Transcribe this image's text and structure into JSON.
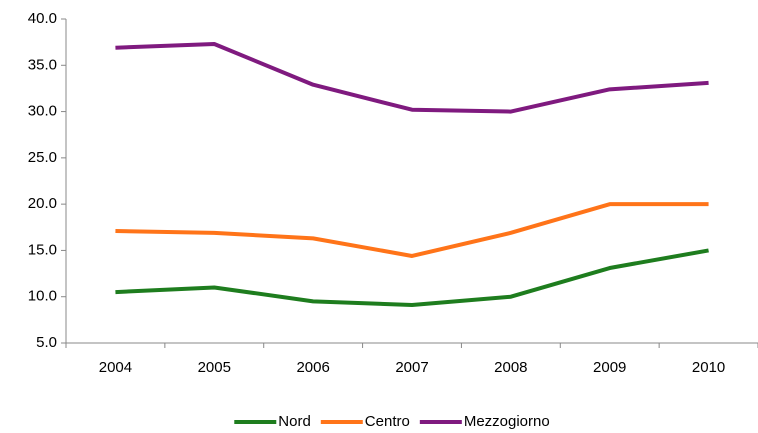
{
  "chart_data": {
    "type": "line",
    "categories": [
      "2004",
      "2005",
      "2006",
      "2007",
      "2008",
      "2009",
      "2010"
    ],
    "series": [
      {
        "name": "Nord",
        "color": "#1e7d1e",
        "values": [
          10.5,
          11.0,
          9.5,
          9.1,
          10.0,
          13.1,
          15.0
        ]
      },
      {
        "name": "Centro",
        "color": "#ff7419",
        "values": [
          17.1,
          16.9,
          16.3,
          14.4,
          16.9,
          20.0,
          20.0
        ]
      },
      {
        "name": "Mezzogiorno",
        "color": "#7f1a7f",
        "values": [
          36.9,
          37.3,
          32.9,
          30.2,
          30.0,
          32.4,
          33.1
        ]
      }
    ],
    "ylim": [
      5,
      40
    ],
    "yticks": [
      {
        "value": 5,
        "label": "5.0"
      },
      {
        "value": 10,
        "label": "10.0"
      },
      {
        "value": 15,
        "label": "15.0"
      },
      {
        "value": 20,
        "label": "20.0"
      },
      {
        "value": 25,
        "label": "25.0"
      },
      {
        "value": 30,
        "label": "30.0"
      },
      {
        "value": 35,
        "label": "35.0"
      },
      {
        "value": 40,
        "label": "40.0"
      }
    ],
    "legend": "bottom"
  }
}
